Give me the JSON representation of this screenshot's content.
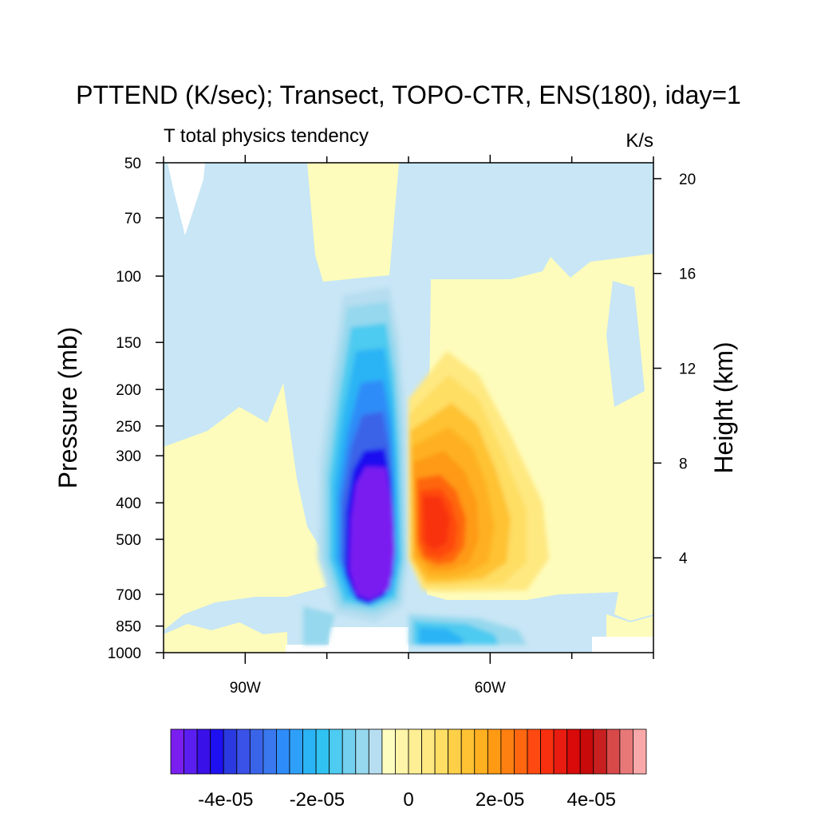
{
  "chart_data": {
    "type": "heatmap",
    "title": "PTTEND (K/sec); Transect, TOPO-CTR, ENS(180), iday=1",
    "subtitle_left": "T total physics tendency",
    "subtitle_right": "K/s",
    "ylabel": "Pressure (mb)",
    "ylabel_right": "Height (km)",
    "y_scale": "log",
    "y_reversed": true,
    "ylim": [
      1000,
      50
    ],
    "xlim": [
      -100,
      -40
    ],
    "xticks": [
      {
        "value": -90,
        "label": "90W"
      },
      {
        "value": -60,
        "label": "60W"
      }
    ],
    "xminor": [
      -100,
      -80,
      -70,
      -50,
      -40
    ],
    "yticks": [
      {
        "value": 50,
        "label": "50"
      },
      {
        "value": 70,
        "label": "70"
      },
      {
        "value": 100,
        "label": "100"
      },
      {
        "value": 150,
        "label": "150"
      },
      {
        "value": 200,
        "label": "200"
      },
      {
        "value": 250,
        "label": "250"
      },
      {
        "value": 300,
        "label": "300"
      },
      {
        "value": 400,
        "label": "400"
      },
      {
        "value": 500,
        "label": "500"
      },
      {
        "value": 700,
        "label": "700"
      },
      {
        "value": 850,
        "label": "850"
      },
      {
        "value": 1000,
        "label": "1000"
      }
    ],
    "yticks_right": [
      {
        "value": 20,
        "label": "20"
      },
      {
        "value": 16,
        "label": "16"
      },
      {
        "value": 12,
        "label": "12"
      },
      {
        "value": 8,
        "label": "8"
      },
      {
        "value": 4,
        "label": "4"
      }
    ],
    "colorbar": {
      "min": -5.2e-05,
      "max": 5.2e-05,
      "step": 4e-06,
      "labels": [
        {
          "value": -4e-05,
          "label": "-4e-05"
        },
        {
          "value": -2e-05,
          "label": "-2e-05"
        },
        {
          "value": 0,
          "label": "0"
        },
        {
          "value": 2e-05,
          "label": "2e-05"
        },
        {
          "value": 4e-05,
          "label": "4e-05"
        }
      ],
      "colors": [
        "#7a1ff0",
        "#5a1ff0",
        "#3a10e8",
        "#1e10f0",
        "#2a3ae0",
        "#3a52e8",
        "#3a64e8",
        "#3a78f0",
        "#2e8cf8",
        "#2fa0fa",
        "#2ab4f5",
        "#30c2f0",
        "#4dcbf0",
        "#73d0ee",
        "#96d8ee",
        "#b6def0",
        "#fefdc0",
        "#fef5a8",
        "#feee94",
        "#fee880",
        "#fede64",
        "#fed048",
        "#fec232",
        "#feb020",
        "#fe9a14",
        "#fe8010",
        "#fe6610",
        "#fe4a10",
        "#f83010",
        "#e81c10",
        "#d80a0a",
        "#c80a0a",
        "#c82020",
        "#d84a4a",
        "#e87878",
        "#f8a8a8"
      ]
    },
    "field_colors": {
      "neg_weak": "#c8e6f5",
      "pos_weak": "#fefcbc",
      "missing": "#ffffff"
    },
    "features": [
      {
        "name": "cooling-core",
        "center_lon": -74,
        "center_p": 480,
        "peak": -5.2e-05
      },
      {
        "name": "heating-core",
        "center_lon": -67,
        "center_p": 450,
        "peak": 4.6e-05
      }
    ]
  }
}
